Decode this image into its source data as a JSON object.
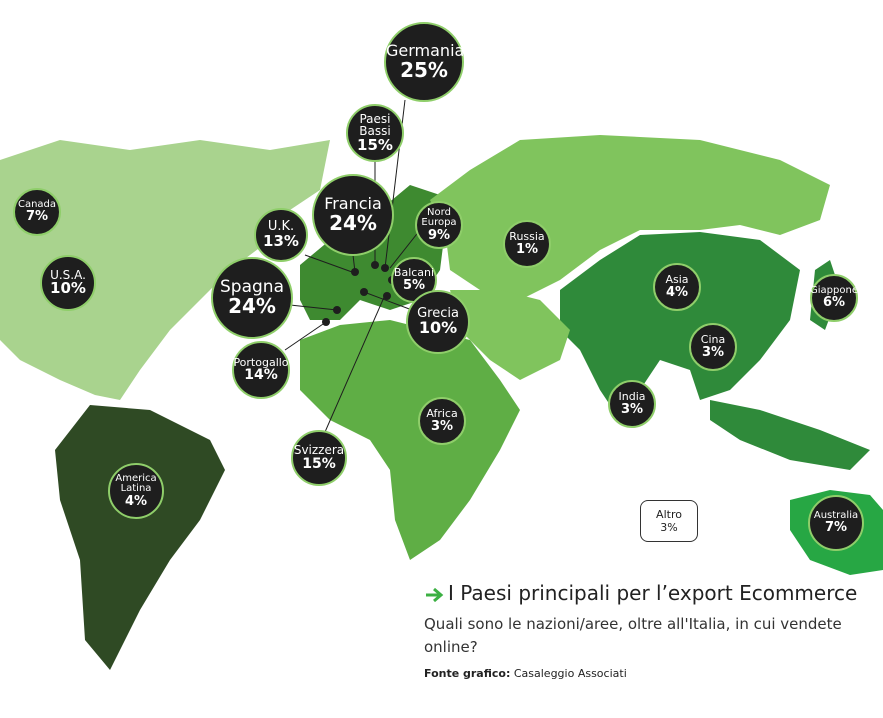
{
  "regions": [
    {
      "name": "Germania",
      "share": "25%"
    },
    {
      "name": "Paesi Bassi",
      "share": "15%"
    },
    {
      "name": "Francia",
      "share": "24%"
    },
    {
      "name": "U.K.",
      "share": "13%"
    },
    {
      "name": "Spagna",
      "share": "24%"
    },
    {
      "name": "Portogallo",
      "share": "14%"
    },
    {
      "name": "Svizzera",
      "share": "15%"
    },
    {
      "name": "Nord Europa",
      "share": "9%"
    },
    {
      "name": "Balcani",
      "share": "5%"
    },
    {
      "name": "Grecia",
      "share": "10%"
    },
    {
      "name": "Russia",
      "share": "1%"
    },
    {
      "name": "Canada",
      "share": "7%"
    },
    {
      "name": "U.S.A.",
      "share": "10%"
    },
    {
      "name": "Asia",
      "share": "4%"
    },
    {
      "name": "Giappone",
      "share": "6%"
    },
    {
      "name": "Cina",
      "share": "3%"
    },
    {
      "name": "India",
      "share": "3%"
    },
    {
      "name": "Africa",
      "share": "3%"
    },
    {
      "name": "America Latina",
      "share": "4%"
    },
    {
      "name": "Australia",
      "share": "7%"
    },
    {
      "name": "Altro",
      "share": "3%"
    }
  ],
  "caption": {
    "title": "I Paesi principali per l’export Ecommerce",
    "subtitle": "Quali sono le nazioni/aree, oltre all'Italia, in cui vendete online?",
    "source_label": "Fonte grafico:",
    "source": "Casaleggio Associati"
  }
}
